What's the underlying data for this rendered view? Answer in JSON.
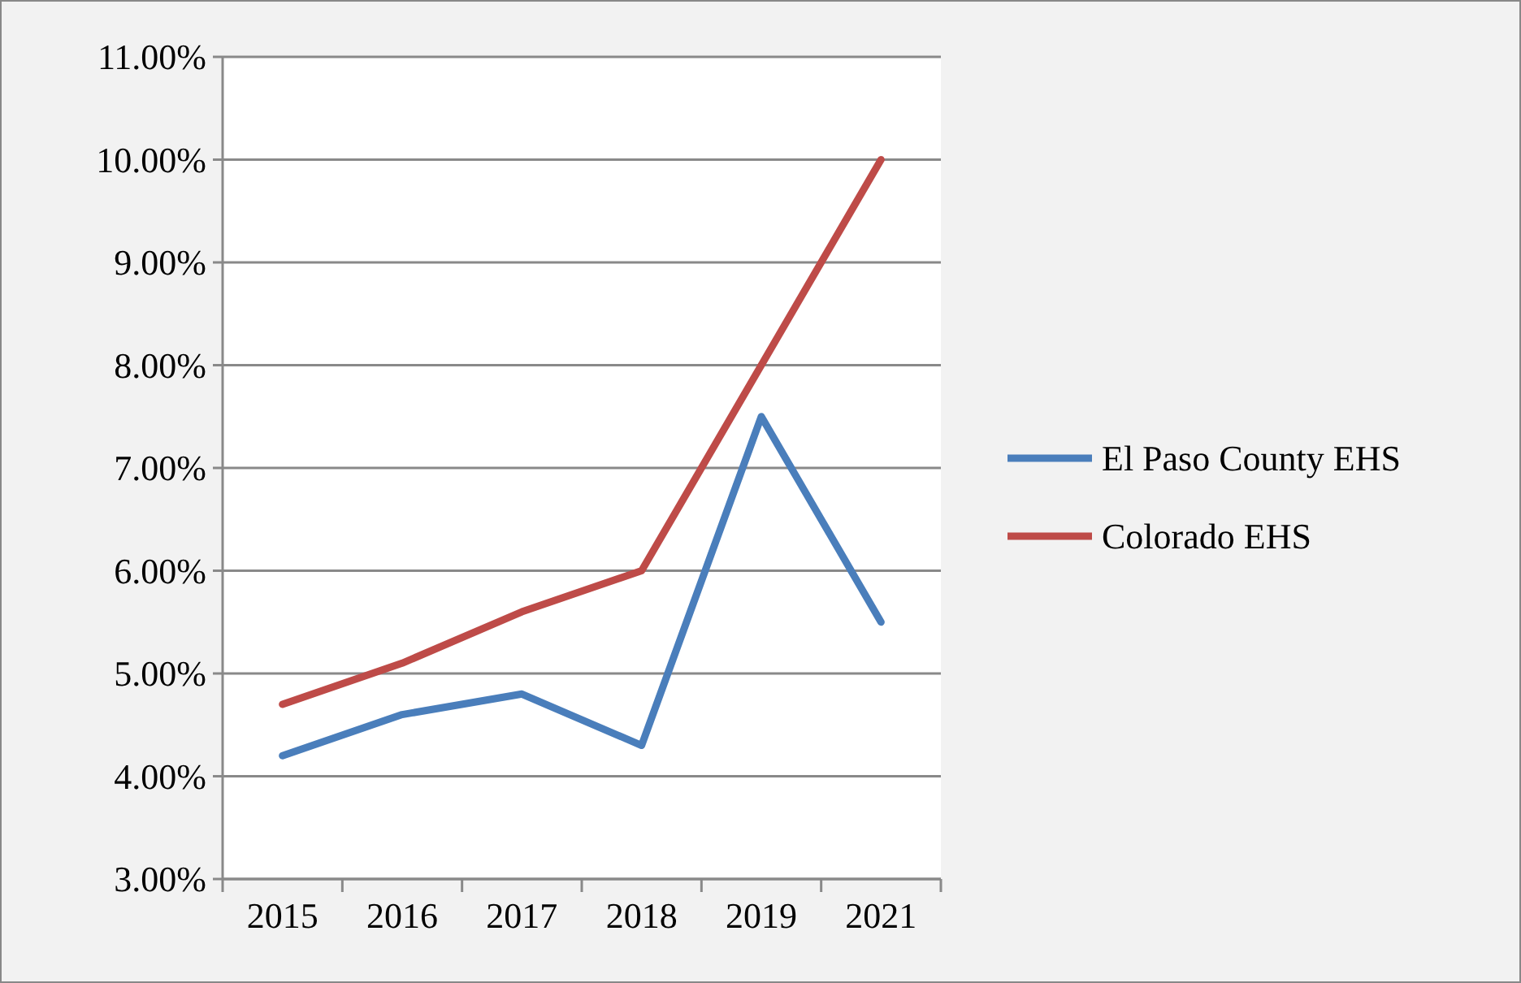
{
  "chart_data": {
    "type": "line",
    "categories": [
      "2015",
      "2016",
      "2017",
      "2018",
      "2019",
      "2021"
    ],
    "series": [
      {
        "name": "El Paso County EHS",
        "color": "#4a7ebb",
        "values": [
          4.2,
          4.6,
          4.8,
          4.3,
          7.5,
          5.5
        ]
      },
      {
        "name": "Colorado EHS",
        "color": "#be4b48",
        "values": [
          4.7,
          5.1,
          5.6,
          6.0,
          8.0,
          10.0
        ]
      }
    ],
    "ylim": [
      3,
      11
    ],
    "yticks": [
      {
        "value": 3,
        "label": "3.00%"
      },
      {
        "value": 4,
        "label": "4.00%"
      },
      {
        "value": 5,
        "label": "5.00%"
      },
      {
        "value": 6,
        "label": "6.00%"
      },
      {
        "value": 7,
        "label": "7.00%"
      },
      {
        "value": 8,
        "label": "8.00%"
      },
      {
        "value": 9,
        "label": "9.00%"
      },
      {
        "value": 10,
        "label": "10.00%"
      },
      {
        "value": 11,
        "label": "11.00%"
      }
    ],
    "grid": "y",
    "legend": "right",
    "marker": "none",
    "line_style": "solid"
  }
}
